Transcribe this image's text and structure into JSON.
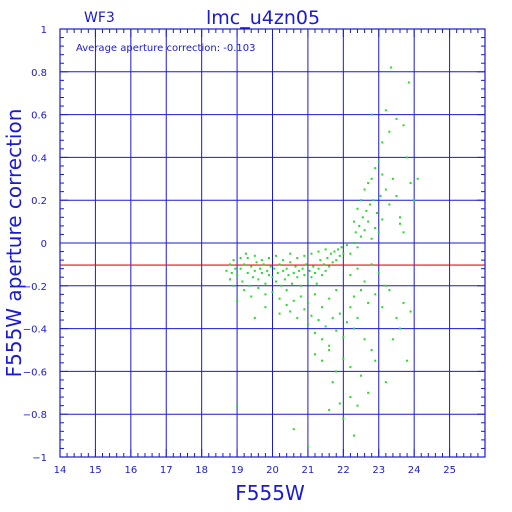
{
  "chart_data": {
    "type": "scatter",
    "title": "lmc_u4zn05",
    "subtitle": "WF3",
    "annotation": "Average aperture correction: -0.103",
    "xlabel": "F555W",
    "ylabel": "F555W aperture correction",
    "xlim": [
      14,
      26
    ],
    "ylim": [
      -1,
      1
    ],
    "x_ticks": [
      14,
      15,
      16,
      17,
      18,
      19,
      20,
      21,
      22,
      23,
      24,
      25
    ],
    "y_ticks": [
      -1,
      -0.8,
      -0.6,
      -0.4,
      -0.2,
      0,
      0.2,
      0.4,
      0.6,
      0.8,
      1
    ],
    "y_tick_labels": [
      "−1",
      "−0.8",
      "−0.6",
      "−0.4",
      "−0.2",
      "0",
      "0.2",
      "0.4",
      "0.6",
      "0.8",
      "1"
    ],
    "grid": true,
    "reference_line": {
      "y": -0.103,
      "color": "#e01010"
    },
    "colors": {
      "axes": "#1a1ad6",
      "grid": "#1a1ad6",
      "points": "#22dd22",
      "line": "#e01010"
    },
    "points": [
      [
        19.0,
        -0.15
      ],
      [
        19.1,
        -0.12
      ],
      [
        19.15,
        -0.18
      ],
      [
        19.2,
        -0.1
      ],
      [
        19.3,
        -0.14
      ],
      [
        19.35,
        -0.2
      ],
      [
        19.4,
        -0.11
      ],
      [
        19.45,
        -0.16
      ],
      [
        19.5,
        -0.13
      ],
      [
        19.55,
        -0.09
      ],
      [
        19.6,
        -0.17
      ],
      [
        19.65,
        -0.12
      ],
      [
        19.7,
        -0.14
      ],
      [
        19.75,
        -0.1
      ],
      [
        19.8,
        -0.19
      ],
      [
        19.85,
        -0.13
      ],
      [
        19.9,
        -0.15
      ],
      [
        19.95,
        -0.11
      ],
      [
        20.0,
        -0.16
      ],
      [
        20.05,
        -0.12
      ],
      [
        20.1,
        -0.18
      ],
      [
        20.15,
        -0.14
      ],
      [
        20.2,
        -0.1
      ],
      [
        20.25,
        -0.2
      ],
      [
        20.3,
        -0.13
      ],
      [
        20.35,
        -0.17
      ],
      [
        20.4,
        -0.12
      ],
      [
        20.45,
        -0.15
      ],
      [
        20.5,
        -0.09
      ],
      [
        20.55,
        -0.19
      ],
      [
        20.6,
        -0.14
      ],
      [
        20.65,
        -0.11
      ],
      [
        20.7,
        -0.16
      ],
      [
        20.75,
        -0.13
      ],
      [
        20.8,
        -0.2
      ],
      [
        20.85,
        -0.12
      ],
      [
        20.9,
        -0.15
      ],
      [
        20.95,
        -0.1
      ],
      [
        21.0,
        -0.18
      ],
      [
        21.05,
        -0.13
      ],
      [
        21.1,
        -0.16
      ],
      [
        21.15,
        -0.11
      ],
      [
        21.2,
        -0.14
      ],
      [
        21.25,
        -0.19
      ],
      [
        21.3,
        -0.12
      ],
      [
        21.35,
        -0.08
      ],
      [
        21.4,
        -0.15
      ],
      [
        21.45,
        -0.1
      ],
      [
        21.5,
        -0.13
      ],
      [
        21.55,
        -0.07
      ],
      [
        21.6,
        -0.11
      ],
      [
        21.65,
        -0.05
      ],
      [
        21.7,
        -0.09
      ],
      [
        21.75,
        -0.04
      ],
      [
        21.8,
        -0.08
      ],
      [
        21.85,
        -0.03
      ],
      [
        21.9,
        -0.06
      ],
      [
        21.95,
        -0.02
      ],
      [
        22.0,
        -0.05
      ],
      [
        22.1,
        -0.01
      ],
      [
        19.2,
        -0.22
      ],
      [
        19.4,
        -0.25
      ],
      [
        19.6,
        -0.21
      ],
      [
        19.8,
        -0.24
      ],
      [
        20.0,
        -0.23
      ],
      [
        20.2,
        -0.26
      ],
      [
        20.4,
        -0.22
      ],
      [
        20.6,
        -0.27
      ],
      [
        20.8,
        -0.25
      ],
      [
        21.0,
        -0.28
      ],
      [
        21.2,
        -0.24
      ],
      [
        21.4,
        -0.3
      ],
      [
        21.6,
        -0.26
      ],
      [
        21.8,
        -0.22
      ],
      [
        19.3,
        -0.07
      ],
      [
        19.5,
        -0.06
      ],
      [
        19.7,
        -0.08
      ],
      [
        19.9,
        -0.07
      ],
      [
        20.1,
        -0.06
      ],
      [
        20.3,
        -0.08
      ],
      [
        20.5,
        -0.05
      ],
      [
        20.7,
        -0.07
      ],
      [
        20.9,
        -0.06
      ],
      [
        21.1,
        -0.05
      ],
      [
        21.3,
        -0.04
      ],
      [
        21.5,
        -0.03
      ],
      [
        18.8,
        -0.1
      ],
      [
        18.85,
        -0.14
      ],
      [
        18.9,
        -0.2
      ],
      [
        18.95,
        -0.12
      ],
      [
        18.7,
        -0.13
      ],
      [
        18.8,
        -0.17
      ],
      [
        18.9,
        -0.08
      ],
      [
        19.0,
        -0.27
      ],
      [
        19.1,
        -0.07
      ],
      [
        19.25,
        -0.05
      ],
      [
        20.5,
        -0.32
      ],
      [
        20.7,
        -0.35
      ],
      [
        20.9,
        -0.31
      ],
      [
        21.0,
        -0.38
      ],
      [
        21.1,
        -0.34
      ],
      [
        21.2,
        -0.42
      ],
      [
        21.3,
        -0.36
      ],
      [
        21.4,
        -0.45
      ],
      [
        21.5,
        -0.39
      ],
      [
        21.6,
        -0.48
      ],
      [
        21.7,
        -0.35
      ],
      [
        21.8,
        -0.41
      ],
      [
        21.9,
        -0.33
      ],
      [
        22.0,
        -0.44
      ],
      [
        22.1,
        -0.37
      ],
      [
        22.2,
        -0.3
      ],
      [
        22.3,
        -0.4
      ],
      [
        22.4,
        -0.35
      ],
      [
        21.2,
        -0.52
      ],
      [
        21.4,
        -0.55
      ],
      [
        21.6,
        -0.5
      ],
      [
        21.8,
        -0.6
      ],
      [
        22.0,
        -0.54
      ],
      [
        22.2,
        -0.58
      ],
      [
        21.7,
        -0.65
      ],
      [
        22.5,
        -0.62
      ],
      [
        22.7,
        -0.7
      ],
      [
        22.8,
        -0.5
      ],
      [
        22.6,
        -0.45
      ],
      [
        22.9,
        -0.55
      ],
      [
        22.2,
        -0.05
      ],
      [
        22.3,
        0.0
      ],
      [
        22.35,
        0.05
      ],
      [
        22.4,
        -0.02
      ],
      [
        22.45,
        0.08
      ],
      [
        22.5,
        0.03
      ],
      [
        22.55,
        0.12
      ],
      [
        22.6,
        0.06
      ],
      [
        22.65,
        0.15
      ],
      [
        22.7,
        0.1
      ],
      [
        22.75,
        0.18
      ],
      [
        22.8,
        0.02
      ],
      [
        22.85,
        0.2
      ],
      [
        22.9,
        0.07
      ],
      [
        22.95,
        0.14
      ],
      [
        23.0,
        0.05
      ],
      [
        23.05,
        0.22
      ],
      [
        23.1,
        0.11
      ],
      [
        22.3,
        0.1
      ],
      [
        22.4,
        0.16
      ],
      [
        22.5,
        0.2
      ],
      [
        22.6,
        0.25
      ],
      [
        22.7,
        0.28
      ],
      [
        22.8,
        0.3
      ],
      [
        22.9,
        0.35
      ],
      [
        23.0,
        0.38
      ],
      [
        23.1,
        0.32
      ],
      [
        23.2,
        0.25
      ],
      [
        23.3,
        0.18
      ],
      [
        23.4,
        0.3
      ],
      [
        23.5,
        0.22
      ],
      [
        23.6,
        0.12
      ],
      [
        23.7,
        0.05
      ],
      [
        23.8,
        0.4
      ],
      [
        23.9,
        0.28
      ],
      [
        24.0,
        0.2
      ],
      [
        22.2,
        -0.15
      ],
      [
        22.4,
        -0.12
      ],
      [
        22.6,
        -0.18
      ],
      [
        22.8,
        -0.1
      ],
      [
        23.0,
        -0.14
      ],
      [
        23.2,
        -0.2
      ],
      [
        22.3,
        -0.25
      ],
      [
        22.5,
        -0.22
      ],
      [
        22.7,
        -0.28
      ],
      [
        22.9,
        -0.24
      ],
      [
        23.1,
        -0.3
      ],
      [
        23.3,
        -0.22
      ],
      [
        23.5,
        -0.35
      ],
      [
        23.7,
        -0.28
      ],
      [
        23.9,
        -0.32
      ],
      [
        23.4,
        -0.45
      ],
      [
        23.6,
        -0.4
      ],
      [
        23.8,
        -0.55
      ],
      [
        23.1,
        0.47
      ],
      [
        23.3,
        0.52
      ],
      [
        23.5,
        0.58
      ],
      [
        23.7,
        0.55
      ],
      [
        23.35,
        0.82
      ],
      [
        23.85,
        0.75
      ],
      [
        23.2,
        0.62
      ],
      [
        22.8,
        0.6
      ],
      [
        19.0,
        -0.76
      ],
      [
        20.6,
        -0.87
      ],
      [
        21.0,
        -0.95
      ],
      [
        21.6,
        -0.78
      ],
      [
        22.0,
        -0.82
      ],
      [
        22.2,
        -0.72
      ],
      [
        22.4,
        -0.76
      ],
      [
        22.3,
        -0.9
      ],
      [
        19.5,
        -0.35
      ],
      [
        19.8,
        -0.3
      ],
      [
        20.2,
        -0.33
      ],
      [
        20.4,
        -0.29
      ],
      [
        21.9,
        -0.75
      ],
      [
        23.2,
        -0.65
      ],
      [
        24.1,
        0.3
      ],
      [
        23.6,
        0.09
      ]
    ]
  }
}
